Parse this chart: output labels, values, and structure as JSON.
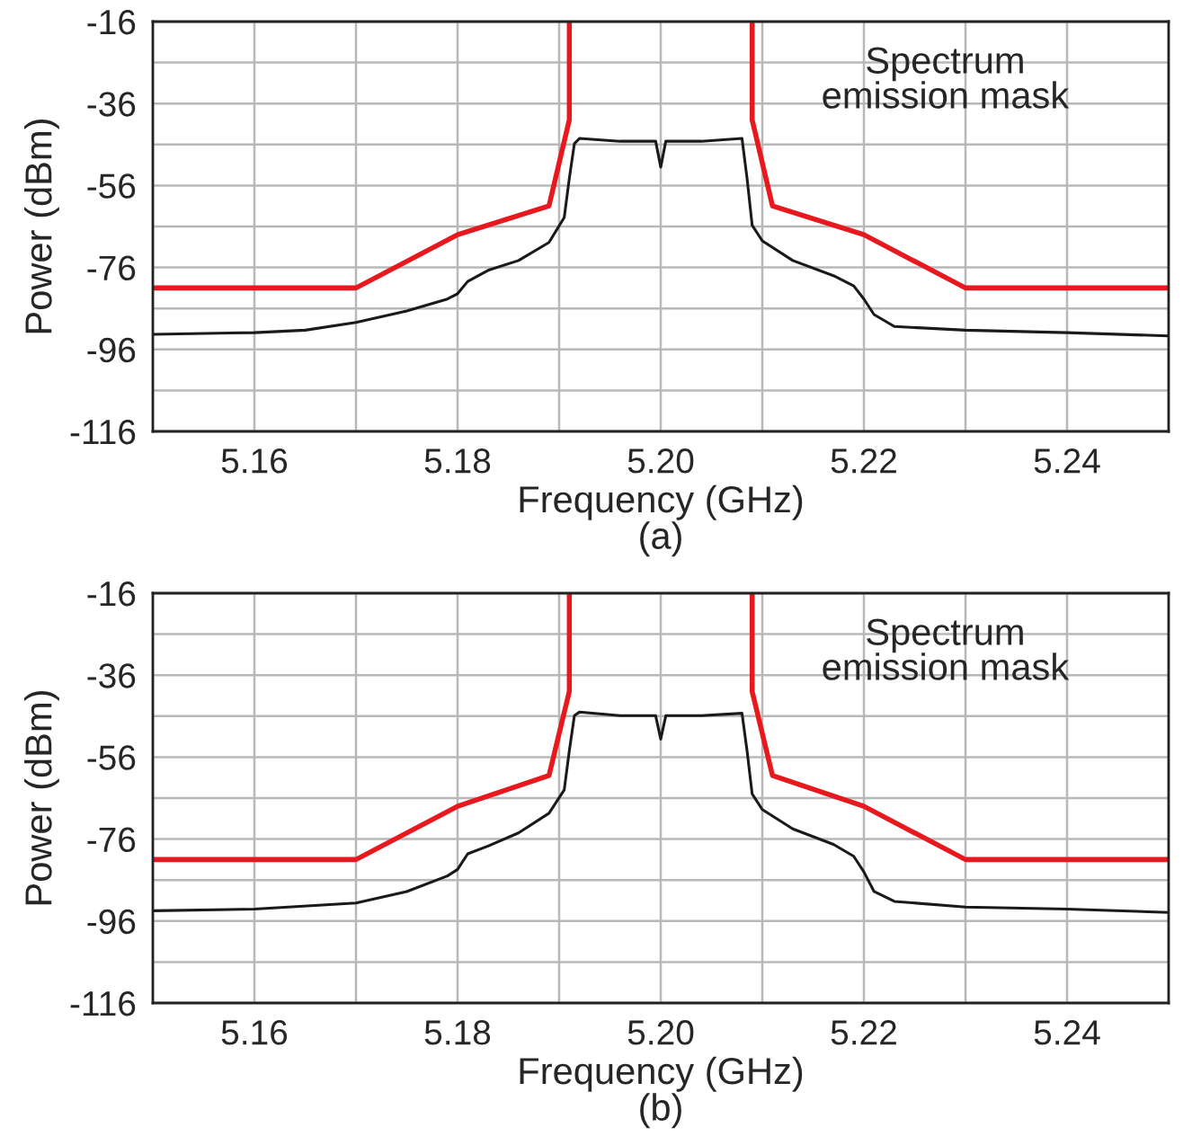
{
  "chart_data": [
    {
      "type": "line",
      "xlabel": "Frequency (GHz)",
      "ylabel": "Power (dBm)",
      "annotations": [
        "Spectrum\nemission mask",
        "(a)"
      ],
      "xlim": [
        5.15,
        5.25
      ],
      "ylim": [
        -116,
        -16
      ],
      "grid": true,
      "legend": false,
      "xticks": [
        {
          "value": 5.15,
          "label": null
        },
        5.16,
        {
          "value": 5.17,
          "label": null
        },
        5.18,
        {
          "value": 5.19,
          "label": null
        },
        {
          "value": 5.2,
          "label": "5.20"
        },
        {
          "value": 5.21,
          "label": null
        },
        5.22,
        {
          "value": 5.23,
          "label": null
        },
        5.24,
        {
          "value": 5.25,
          "label": null
        }
      ],
      "yticks": [
        -116,
        {
          "value": -106,
          "label": null
        },
        -96,
        {
          "value": -86,
          "label": null
        },
        -76,
        {
          "value": -66,
          "label": null
        },
        -56,
        {
          "value": -46,
          "label": null
        },
        -36,
        {
          "value": -26,
          "label": null
        },
        -16
      ],
      "series": [
        {
          "color": "#1a1a1a",
          "x": [
            5.15,
            5.16,
            5.165,
            5.17,
            5.175,
            5.179,
            5.18,
            5.181,
            5.183,
            5.186,
            5.189,
            5.1905,
            5.191,
            5.1915,
            5.192,
            5.196,
            5.1995,
            5.2,
            5.2005,
            5.204,
            5.208,
            5.2085,
            5.209,
            5.21,
            5.213,
            5.217,
            5.219,
            5.22,
            5.221,
            5.223,
            5.23,
            5.24,
            5.25
          ],
          "values": [
            -92.3,
            -91.9,
            -91.3,
            -89.4,
            -86.6,
            -83.7,
            -82.4,
            -79.4,
            -76.7,
            -74.3,
            -69.9,
            -63.8,
            -54.3,
            -45.8,
            -44.5,
            -45.2,
            -45.2,
            -51.5,
            -45.2,
            -45.2,
            -44.5,
            -54.3,
            -65.7,
            -69.5,
            -74.3,
            -78,
            -80.5,
            -83.7,
            -87.5,
            -90.4,
            -91.3,
            -91.9,
            -92.7
          ]
        },
        {
          "color": "#e8191e",
          "x": [
            5.15,
            5.17,
            5.18,
            5.189,
            5.191,
            5.191,
            5.2,
            5.209,
            5.209,
            5.211,
            5.22,
            5.23,
            5.25
          ],
          "values": [
            -81,
            -81,
            -68,
            -61,
            -40,
            -16,
            null,
            -16,
            -40,
            -61,
            -68,
            -81,
            -81
          ]
        }
      ]
    },
    {
      "type": "line",
      "xlabel": "Frequency (GHz)",
      "ylabel": "Power (dBm)",
      "annotations": [
        "Spectrum\nemission mask",
        "(b)"
      ],
      "xlim": [
        5.15,
        5.25
      ],
      "ylim": [
        -116,
        -16
      ],
      "grid": true,
      "legend": false,
      "xticks": [
        {
          "value": 5.15,
          "label": null
        },
        5.16,
        {
          "value": 5.17,
          "label": null
        },
        5.18,
        {
          "value": 5.19,
          "label": null
        },
        {
          "value": 5.2,
          "label": "5.20"
        },
        {
          "value": 5.21,
          "label": null
        },
        5.22,
        {
          "value": 5.23,
          "label": null
        },
        5.24,
        {
          "value": 5.25,
          "label": null
        }
      ],
      "yticks": [
        -116,
        {
          "value": -106,
          "label": null
        },
        -96,
        {
          "value": -86,
          "label": null
        },
        -76,
        {
          "value": -66,
          "label": null
        },
        -56,
        {
          "value": -46,
          "label": null
        },
        -36,
        {
          "value": -26,
          "label": null
        },
        -16
      ],
      "series": [
        {
          "color": "#1a1a1a",
          "x": [
            5.15,
            5.16,
            5.17,
            5.175,
            5.179,
            5.18,
            5.181,
            5.183,
            5.186,
            5.189,
            5.1905,
            5.191,
            5.1915,
            5.192,
            5.196,
            5.1995,
            5.2,
            5.2005,
            5.204,
            5.208,
            5.2085,
            5.209,
            5.21,
            5.213,
            5.217,
            5.219,
            5.22,
            5.221,
            5.223,
            5.23,
            5.24,
            5.25
          ],
          "values": [
            -93.5,
            -93.1,
            -91.6,
            -88.8,
            -85,
            -83.4,
            -79.6,
            -77.7,
            -74.5,
            -69.7,
            -64,
            -54.5,
            -45.9,
            -45,
            -45.9,
            -45.9,
            -51.6,
            -45.9,
            -45.9,
            -45.3,
            -54.5,
            -65,
            -68.8,
            -73.5,
            -77.3,
            -80.2,
            -84,
            -88.8,
            -91.2,
            -92.6,
            -93.1,
            -93.9
          ]
        },
        {
          "color": "#e8191e",
          "x": [
            5.15,
            5.17,
            5.18,
            5.189,
            5.191,
            5.191,
            5.2,
            5.209,
            5.209,
            5.211,
            5.22,
            5.23,
            5.25
          ],
          "values": [
            -81,
            -81,
            -68,
            -60.5,
            -40,
            -16,
            null,
            -16,
            -40,
            -60.5,
            -68,
            -81,
            -81
          ]
        }
      ]
    }
  ]
}
